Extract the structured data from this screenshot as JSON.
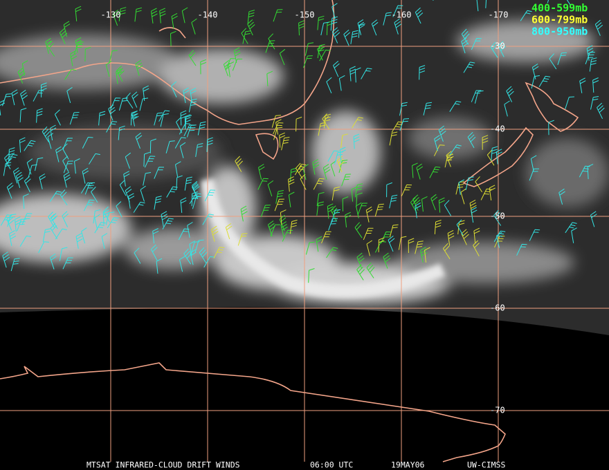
{
  "map": {
    "longitude_labels": [
      "-130",
      "-140",
      "-150",
      "-160",
      "-170"
    ],
    "latitude_labels": [
      "-30",
      "-40",
      "-50",
      "-60",
      "-70"
    ],
    "legend": [
      "400-599mb",
      "600-799mb",
      "800-950mb"
    ],
    "footer": {
      "title": "MTSAT INFRARED-CLOUD DRIFT WINDS",
      "time": "06:00 UTC",
      "date": "19MAY06",
      "source": "UW-CIMSS"
    }
  }
}
